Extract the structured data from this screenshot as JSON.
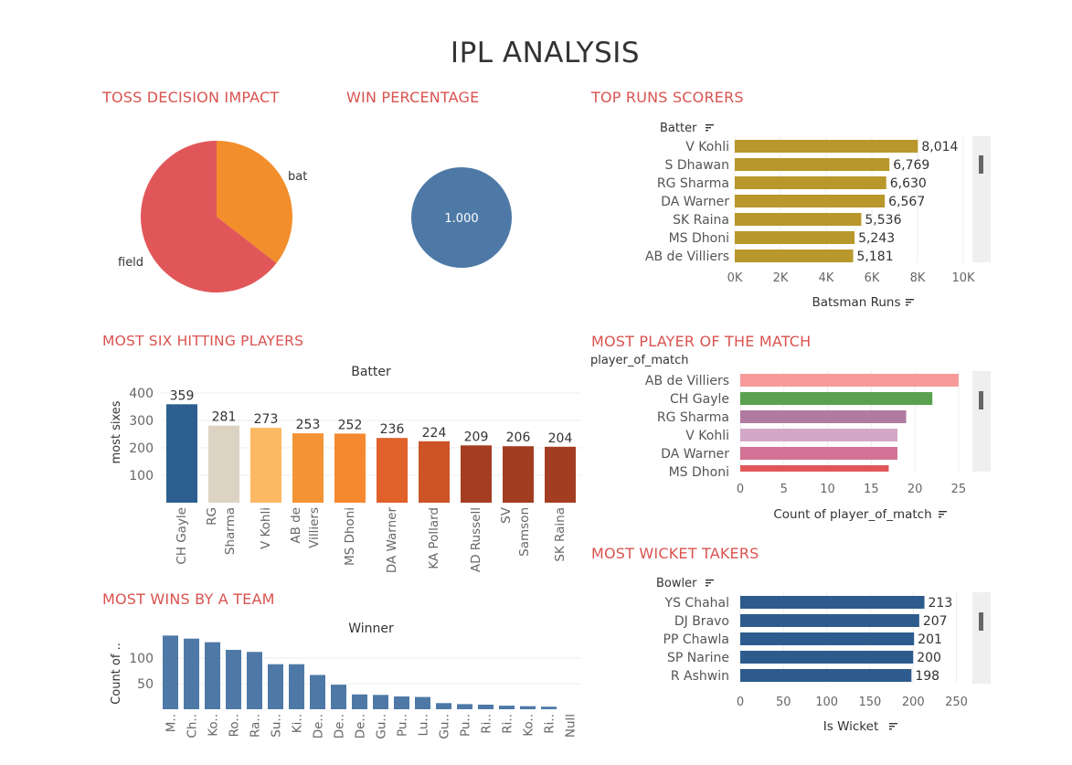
{
  "dashboard": {
    "title": "IPL ANALYSIS"
  },
  "sections": {
    "toss": "TOSS DECISION IMPACT",
    "win_pct": "WIN PERCENTAGE",
    "top_runs": "TOP RUNS SCORERS",
    "six_hitters": "MOST SIX HITTING PLAYERS",
    "pom": "MOST PLAYER OF THE MATCH",
    "wins_team": "MOST WINS BY A TEAM",
    "wickets": "MOST WICKET TAKERS"
  },
  "colors": {
    "title_red": "#d9534f",
    "runs_bar": "#b8972b",
    "wicket_bar": "#2e5b8d",
    "wins_bar": "#4e79a7",
    "win_circle": "#4e79a7"
  },
  "chart_data": [
    {
      "id": "toss",
      "type": "pie",
      "labels": [
        "bat",
        "field"
      ],
      "values": [
        35.5,
        64.5
      ],
      "colors": [
        "#f28e2b",
        "#e15759"
      ]
    },
    {
      "id": "win_pct",
      "type": "pie",
      "labels": [
        "1.000"
      ],
      "values": [
        1.0
      ],
      "colors": [
        "#4e79a7"
      ]
    },
    {
      "id": "top_runs",
      "type": "bar",
      "orientation": "horizontal",
      "row_header": "Batter",
      "xlabel": "Batsman Runs",
      "categories": [
        "V Kohli",
        "S Dhawan",
        "RG Sharma",
        "DA Warner",
        "SK Raina",
        "MS Dhoni",
        "AB de Villiers"
      ],
      "values": [
        8014,
        6769,
        6630,
        6567,
        5536,
        5243,
        5181
      ],
      "value_labels": [
        "8,014",
        "6,769",
        "6,630",
        "6,567",
        "5,536",
        "5,243",
        "5,181"
      ],
      "xticks": [
        "0K",
        "2K",
        "4K",
        "6K",
        "8K",
        "10K"
      ],
      "xlim": [
        0,
        10000
      ],
      "color": "#b8972b"
    },
    {
      "id": "six_hitters",
      "type": "bar",
      "column_header": "Batter",
      "ylabel": "most sixes",
      "categories": [
        "CH Gayle",
        "RG Sharma",
        "V Kohli",
        "AB de Villiers",
        "MS Dhoni",
        "DA Warner",
        "KA Pollard",
        "AD Russell",
        "SV Samson",
        "SK Raina"
      ],
      "category_lines": [
        [
          "CH Gayle"
        ],
        [
          "RG",
          "Sharma"
        ],
        [
          "V Kohli"
        ],
        [
          "AB de",
          "Villiers"
        ],
        [
          "MS Dhoni"
        ],
        [
          "DA Warner"
        ],
        [
          "KA Pollard"
        ],
        [
          "AD Russell"
        ],
        [
          "SV",
          "Samson"
        ],
        [
          "SK Raina"
        ]
      ],
      "values": [
        359,
        281,
        273,
        253,
        252,
        236,
        224,
        209,
        206,
        204
      ],
      "colors": [
        "#2c5f8f",
        "#dcd3c3",
        "#fdb863",
        "#f59436",
        "#f5892f",
        "#e0612a",
        "#cc5427",
        "#a43d22",
        "#a23d22",
        "#a33d22"
      ],
      "yticks": [
        "100",
        "200",
        "300",
        "400"
      ],
      "ylim": [
        0,
        400
      ]
    },
    {
      "id": "pom",
      "type": "bar",
      "orientation": "horizontal",
      "row_header": "player_of_match",
      "xlabel": "Count of player_of_match",
      "categories": [
        "AB de Villiers",
        "CH Gayle",
        "RG Sharma",
        "V Kohli",
        "DA Warner",
        "MS Dhoni"
      ],
      "values": [
        25,
        22,
        19,
        18,
        18,
        17
      ],
      "colors": [
        "#f89a9a",
        "#59a14f",
        "#b07aa1",
        "#d4a6c8",
        "#d37295",
        "#e15759"
      ],
      "xticks": [
        "0",
        "5",
        "10",
        "15",
        "20",
        "25"
      ],
      "xlim": [
        0,
        27
      ]
    },
    {
      "id": "wins_team",
      "type": "bar",
      "column_header": "Winner",
      "ylabel": "Count of ..",
      "categories": [
        "M..",
        "Ch..",
        "Ko..",
        "Ro..",
        "Ra..",
        "Su..",
        "Ki..",
        "De..",
        "De..",
        "De..",
        "Gu..",
        "Pu..",
        "Lu..",
        "Gu..",
        "Pu..",
        "Ri..",
        "Ri..",
        "Ko..",
        "Ri..",
        "Null"
      ],
      "values": [
        144,
        138,
        131,
        116,
        112,
        88,
        88,
        67,
        48,
        29,
        28,
        25,
        24,
        12,
        10,
        9,
        7,
        6,
        5,
        0
      ],
      "yticks": [
        "50",
        "100"
      ],
      "ylim": [
        0,
        150
      ],
      "color": "#4e79a7"
    },
    {
      "id": "wickets",
      "type": "bar",
      "orientation": "horizontal",
      "row_header": "Bowler",
      "xlabel": "Is Wicket",
      "categories": [
        "YS Chahal",
        "DJ Bravo",
        "PP Chawla",
        "SP Narine",
        "R Ashwin"
      ],
      "values": [
        213,
        207,
        201,
        200,
        198
      ],
      "xticks": [
        "0",
        "50",
        "100",
        "150",
        "200",
        "250"
      ],
      "xlim": [
        0,
        260
      ],
      "color": "#2e5b8d"
    }
  ]
}
